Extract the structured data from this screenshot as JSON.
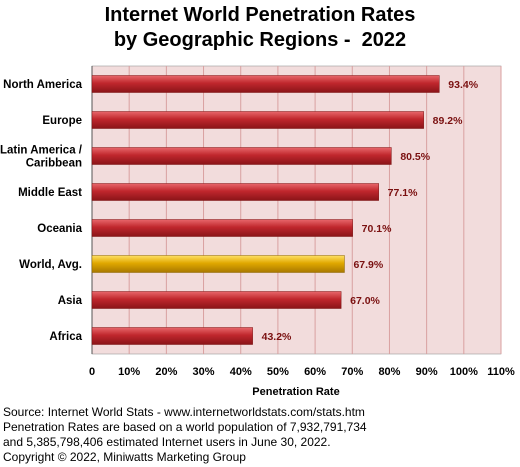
{
  "chart_data": {
    "type": "bar",
    "orientation": "horizontal",
    "title": [
      "Internet World Penetration Rates",
      "by Geographic Regions -  2022"
    ],
    "categories": [
      [
        "North America"
      ],
      [
        "Europe"
      ],
      [
        "Latin America /",
        "Caribbean"
      ],
      [
        "Middle East"
      ],
      [
        "Oceania"
      ],
      [
        "World, Avg."
      ],
      [
        "Asia"
      ],
      [
        "Africa"
      ]
    ],
    "values": [
      93.4,
      89.2,
      80.5,
      77.1,
      70.1,
      67.9,
      67.0,
      43.2
    ],
    "value_labels": [
      "93.4%",
      "89.2%",
      "80.5%",
      "77.1%",
      "70.1%",
      "67.9%",
      "67.0%",
      "43.2%"
    ],
    "highlight_index": 5,
    "xlim": [
      0,
      110
    ],
    "xticks": [
      0,
      10,
      20,
      30,
      40,
      50,
      60,
      70,
      80,
      90,
      100,
      110
    ],
    "xtick_labels": [
      "0",
      "10%",
      "20%",
      "30%",
      "40%",
      "50%",
      "60%",
      "70%",
      "80%",
      "90%",
      "100%",
      "110%"
    ],
    "xlabel": "Penetration Rate",
    "ylabel": "",
    "grid": true,
    "colors": {
      "bar": "#c0272d",
      "bar_highlight": "#e0a800",
      "plot_background": "#f2dcdc",
      "grid": "#d9a0a0",
      "value_label": "#7a1010"
    }
  },
  "footer": {
    "lines": [
      "Source: Internet World Stats - www.internetworldstats.com/stats.htm",
      "Penetration Rates are based on a world population of 7,932,791,734",
      "and 5,385,798,406 estimated Internet users in June 30, 2022.",
      "Copyright © 2022, Miniwatts Marketing Group"
    ]
  }
}
